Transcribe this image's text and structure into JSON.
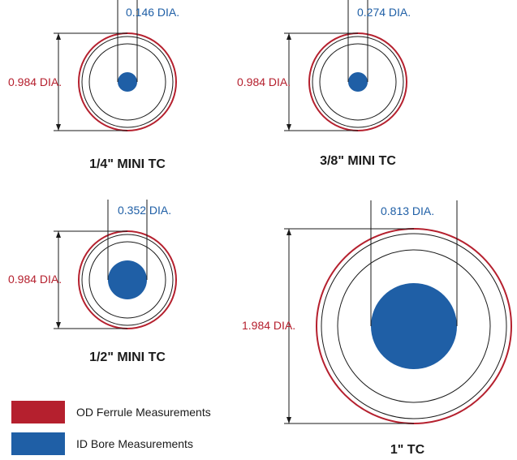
{
  "colors": {
    "od": "#b5202e",
    "id": "#1f5fa6",
    "line": "#1a1a1a"
  },
  "fittings": [
    {
      "name": "1/4\" MINI  TC",
      "od_label": "0.984 DIA.",
      "id_label": "0.146 DIA.",
      "od_dia": 0.984,
      "id_dia": 0.146
    },
    {
      "name": "3/8\" MINI  TC",
      "od_label": "0.984 DIA.",
      "id_label": "0.274 DIA.",
      "od_dia": 0.984,
      "id_dia": 0.274
    },
    {
      "name": "1/2\" MINI  TC",
      "od_label": "0.984 DIA.",
      "id_label": "0.352 DIA.",
      "od_dia": 0.984,
      "id_dia": 0.352
    },
    {
      "name": "1\" TC",
      "od_label": "1.984 DIA.",
      "id_label": "0.813 DIA.",
      "od_dia": 1.984,
      "id_dia": 0.813
    }
  ],
  "legend": [
    {
      "label": "OD Ferrule Measurements",
      "color": "#b5202e"
    },
    {
      "label": "ID Bore Measurements",
      "color": "#1f5fa6"
    }
  ]
}
